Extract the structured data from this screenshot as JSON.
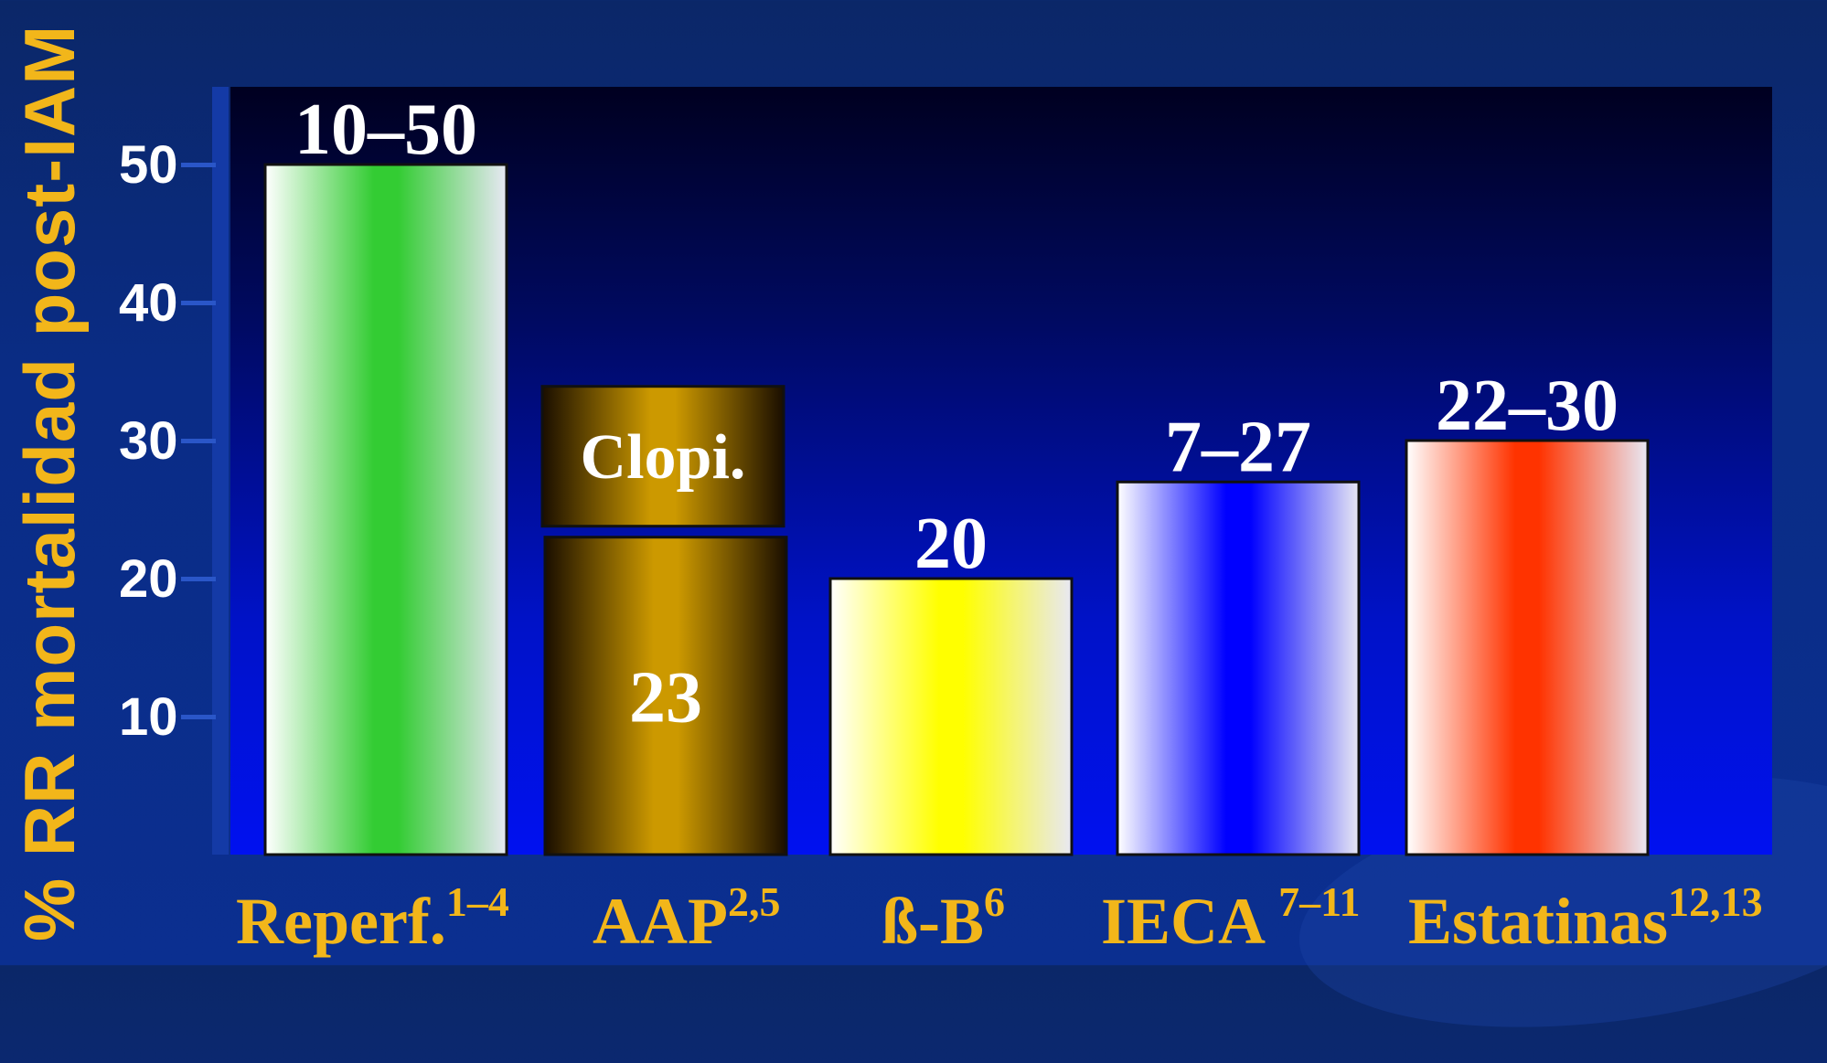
{
  "chart_data": {
    "type": "bar",
    "ylabel": "% RR mortalidad post-IAM",
    "yticks": [
      10,
      20,
      30,
      40,
      50
    ],
    "ylim": [
      0,
      55
    ],
    "categories": [
      {
        "name": "Reperf.",
        "sup": "1–4",
        "value": 50,
        "label": "10–50",
        "color": "#33cc33"
      },
      {
        "name": "AAP",
        "sup": "2,5",
        "value": 23,
        "label": "23",
        "color": "#cc9900",
        "stack": {
          "name": "Clopi.",
          "value": 10
        }
      },
      {
        "name": "ß-B",
        "sup": "6",
        "value": 20,
        "label": "20",
        "color": "#ffff00"
      },
      {
        "name": "IECA ",
        "sup": "7–11",
        "value": 27,
        "label": "7–27",
        "color": "#0000ff"
      },
      {
        "name": "Estatinas",
        "sup": "12,13",
        "value": 30,
        "label": "22–30",
        "color": "#ff3300"
      }
    ]
  }
}
